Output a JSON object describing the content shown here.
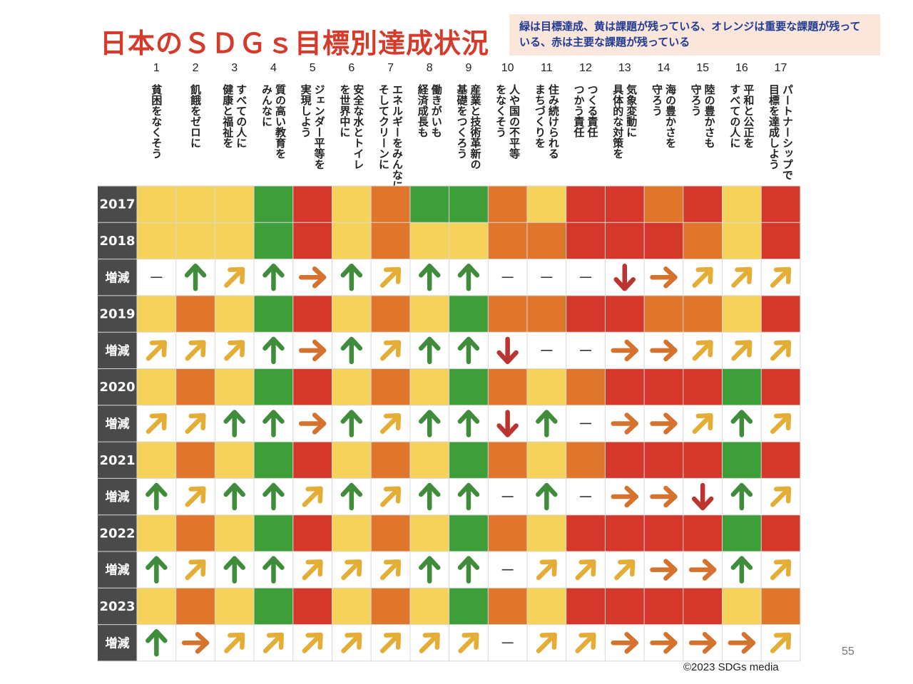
{
  "title": "日本のＳＤＧｓ目標別達成状況",
  "legend_note": "緑は目標達成、黄は課題が残っている、オレンジは重要な課題が残っている、赤は主要な課題が残っている",
  "page_number": "55",
  "copyright": "©2023 SDGs media",
  "colors": {
    "G": "#3e9e3a",
    "Y": "#f5d35a",
    "O": "#e0752c",
    "R": "#d5372a",
    "row_label_bg": "#4a4a4a",
    "arrow_up": "#3f8d3b",
    "arrow_diag": "#e4ad36",
    "arrow_right": "#d4722e",
    "arrow_down": "#bb3530",
    "dash": "#333333"
  },
  "chart_data": {
    "type": "table",
    "goal_numbers": [
      "1",
      "2",
      "3",
      "4",
      "5",
      "6",
      "7",
      "8",
      "9",
      "10",
      "11",
      "12",
      "13",
      "14",
      "15",
      "16",
      "17"
    ],
    "goal_names": [
      "貧困をなくそう",
      "飢餓をゼロに",
      "すべての人に|健康と福祉を",
      "質の高い教育を|みんなに",
      "ジェンダー平等を|実現しよう",
      "安全な水とトイレ|を世界中に",
      "エネルギーをみんなに|そしてクリーンに",
      "働きがいも|経済成長も",
      "産業と技術革新の|基礎をつくろう",
      "人や国の不平等|をなくそう",
      "住み続けられる|まちづくりを",
      "つくる責任|つかう責任",
      "気象変動に|具体的な対策を",
      "海の豊かさを|守ろう",
      "陸の豊かさも|守ろう",
      "平和と公正を|すべての人に",
      "パートナーシップで|目標を達成しよう"
    ],
    "rows": [
      {
        "label": "2017",
        "kind": "status",
        "values": [
          "Y",
          "Y",
          "Y",
          "G",
          "R",
          "Y",
          "O",
          "G",
          "G",
          "O",
          "Y",
          "R",
          "R",
          "O",
          "R",
          "Y",
          "R"
        ]
      },
      {
        "label": "2018",
        "kind": "status",
        "values": [
          "Y",
          "Y",
          "Y",
          "G",
          "R",
          "Y",
          "O",
          "Y",
          "Y",
          "O",
          "O",
          "R",
          "R",
          "R",
          "O",
          "Y",
          "R"
        ]
      },
      {
        "label": "増減",
        "kind": "trend",
        "values": [
          "dash",
          "up",
          "diag",
          "up",
          "right",
          "up",
          "diag",
          "up",
          "up",
          "dash",
          "dash",
          "dash",
          "down",
          "right",
          "diag",
          "diag",
          "diag"
        ]
      },
      {
        "label": "2019",
        "kind": "status",
        "values": [
          "Y",
          "O",
          "Y",
          "G",
          "R",
          "Y",
          "O",
          "Y",
          "G",
          "O",
          "O",
          "R",
          "R",
          "O",
          "O",
          "Y",
          "R"
        ]
      },
      {
        "label": "増減",
        "kind": "trend",
        "values": [
          "diag",
          "diag",
          "diag",
          "up",
          "right",
          "up",
          "diag",
          "up",
          "up",
          "down",
          "dash",
          "dash",
          "right",
          "right",
          "diag",
          "diag",
          "diag"
        ]
      },
      {
        "label": "2020",
        "kind": "status",
        "values": [
          "Y",
          "O",
          "Y",
          "G",
          "R",
          "Y",
          "O",
          "Y",
          "G",
          "O",
          "Y",
          "O",
          "R",
          "R",
          "R",
          "G",
          "R"
        ]
      },
      {
        "label": "増減",
        "kind": "trend",
        "values": [
          "diag",
          "diag",
          "up",
          "up",
          "right",
          "up",
          "diag",
          "up",
          "up",
          "down",
          "up",
          "dash",
          "right",
          "right",
          "diag",
          "up",
          "diag"
        ]
      },
      {
        "label": "2021",
        "kind": "status",
        "values": [
          "Y",
          "O",
          "Y",
          "G",
          "R",
          "Y",
          "O",
          "Y",
          "G",
          "O",
          "Y",
          "O",
          "R",
          "R",
          "R",
          "G",
          "R"
        ]
      },
      {
        "label": "増減",
        "kind": "trend",
        "values": [
          "up",
          "diag",
          "up",
          "up",
          "diag",
          "up",
          "diag",
          "up",
          "up",
          "dash",
          "up",
          "dash",
          "right",
          "right",
          "down",
          "up",
          "diag"
        ]
      },
      {
        "label": "2022",
        "kind": "status",
        "values": [
          "Y",
          "O",
          "Y",
          "G",
          "R",
          "Y",
          "O",
          "Y",
          "G",
          "O",
          "Y",
          "R",
          "R",
          "R",
          "R",
          "G",
          "R"
        ]
      },
      {
        "label": "増減",
        "kind": "trend",
        "values": [
          "up",
          "diag",
          "up",
          "up",
          "diag",
          "diag",
          "diag",
          "up",
          "up",
          "dash",
          "diag",
          "diag",
          "diag",
          "right",
          "right",
          "up",
          "diag"
        ]
      },
      {
        "label": "2023",
        "kind": "status",
        "values": [
          "Y",
          "O",
          "Y",
          "G",
          "R",
          "Y",
          "O",
          "Y",
          "G",
          "O",
          "Y",
          "R",
          "R",
          "R",
          "R",
          "Y",
          "O"
        ]
      },
      {
        "label": "増減",
        "kind": "trend",
        "values": [
          "up",
          "right",
          "diag",
          "diag",
          "diag",
          "diag",
          "diag",
          "diag",
          "diag",
          "dash",
          "diag",
          "diag",
          "right",
          "right",
          "right",
          "right",
          "diag"
        ]
      }
    ]
  }
}
